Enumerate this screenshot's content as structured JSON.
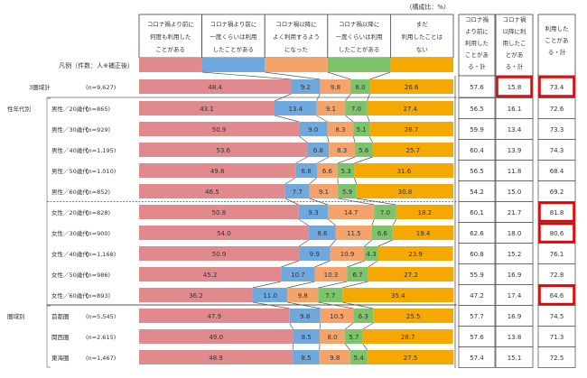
{
  "chart_data": {
    "type": "bar",
    "orientation": "horizontal-stacked-100",
    "unit_note": "（構成比：%）",
    "legend_label": "凡例（件数：人※補正後）",
    "legend_position": "top",
    "series": [
      {
        "name": "コロナ禍より前に何度も利用したことがある",
        "lines": [
          "コロナ禍より前に",
          "何度も利用した",
          "ことがある"
        ],
        "color": "#e08a8e"
      },
      {
        "name": "コロナ禍より前に一度くらいは利用したことがある",
        "lines": [
          "コロナ禍より前に",
          "一度くらいは利用",
          "したことがある"
        ],
        "color": "#6fa8dc"
      },
      {
        "name": "コロナ禍以降によく利用するようになった",
        "lines": [
          "コロナ禍以降に",
          "よく利用するよう",
          "になった"
        ],
        "color": "#f4a36a"
      },
      {
        "name": "コロナ禍以降に一度くらいは利用したことがある",
        "lines": [
          "コロナ禍以降に",
          "一度くらいは利用",
          "したことがある"
        ],
        "color": "#7dc36b"
      },
      {
        "name": "まだ利用したことはない",
        "lines": [
          "まだ",
          "利用したことは",
          "ない"
        ],
        "color": "#f5a800"
      }
    ],
    "summary_columns": [
      {
        "lines": [
          "コロナ禍",
          "より前に",
          "利用した",
          "ことがあ",
          "る・計"
        ]
      },
      {
        "lines": [
          "コロナ禍",
          "以降に利",
          "用したこ",
          "とがあ",
          "る・計"
        ]
      },
      {
        "lines": [
          "利用した",
          "ことがあ",
          "る・計"
        ]
      }
    ],
    "groups": [
      {
        "label": "性年代別",
        "from": 1,
        "to": 10
      },
      {
        "label": "圏域別",
        "from": 11,
        "to": 13
      }
    ],
    "rows": [
      {
        "label": "3圏域計",
        "n": "(n=9,627)",
        "values": [
          48.4,
          9.2,
          9.8,
          6.0,
          26.6
        ],
        "summary": [
          "57.6",
          "15.8",
          "73.4"
        ],
        "highlight": [
          false,
          true,
          true
        ]
      },
      {
        "label": "男性／20歳代",
        "n": "(n=865)",
        "values": [
          43.1,
          13.4,
          9.1,
          7.0,
          27.4
        ],
        "summary": [
          "56.5",
          "16.1",
          "72.6"
        ],
        "highlight": [
          false,
          false,
          false
        ]
      },
      {
        "label": "男性／30歳代",
        "n": "(n=929)",
        "values": [
          50.9,
          9.0,
          8.3,
          5.1,
          26.7
        ],
        "summary": [
          "59.9",
          "13.4",
          "73.3"
        ],
        "highlight": [
          false,
          false,
          false
        ]
      },
      {
        "label": "男性／40歳代",
        "n": "(n=1,195)",
        "values": [
          53.6,
          6.8,
          8.3,
          5.6,
          25.7
        ],
        "summary": [
          "60.4",
          "13.9",
          "74.3"
        ],
        "highlight": [
          false,
          false,
          false
        ]
      },
      {
        "label": "男性／50歳代",
        "n": "(n=1,010)",
        "values": [
          49.8,
          6.8,
          6.6,
          5.3,
          31.6
        ],
        "summary": [
          "56.5",
          "11.8",
          "68.4"
        ],
        "highlight": [
          false,
          false,
          false
        ]
      },
      {
        "label": "男性／60歳代",
        "n": "(n=852)",
        "values": [
          46.5,
          7.7,
          9.1,
          5.9,
          30.8
        ],
        "summary": [
          "54.2",
          "15.0",
          "69.2"
        ],
        "highlight": [
          false,
          false,
          false
        ]
      },
      {
        "label": "女性／20歳代",
        "n": "(n=828)",
        "values": [
          50.8,
          9.3,
          14.7,
          7.0,
          18.2
        ],
        "summary": [
          "60.1",
          "21.7",
          "81.8"
        ],
        "highlight": [
          false,
          false,
          true
        ]
      },
      {
        "label": "女性／30歳代",
        "n": "(n=900)",
        "values": [
          54.0,
          8.6,
          11.5,
          6.6,
          19.4
        ],
        "summary": [
          "62.6",
          "18.0",
          "80.6"
        ],
        "highlight": [
          false,
          false,
          true
        ]
      },
      {
        "label": "女性／40歳代",
        "n": "(n=1,168)",
        "values": [
          50.9,
          9.9,
          10.9,
          4.3,
          23.9
        ],
        "summary": [
          "60.8",
          "15.2",
          "76.1"
        ],
        "highlight": [
          false,
          false,
          false
        ]
      },
      {
        "label": "女性／50歳代",
        "n": "(n=986)",
        "values": [
          45.2,
          10.7,
          10.3,
          6.7,
          27.2
        ],
        "summary": [
          "55.9",
          "16.9",
          "72.8"
        ],
        "highlight": [
          false,
          false,
          false
        ]
      },
      {
        "label": "女性／60歳代",
        "n": "(n=893)",
        "values": [
          36.2,
          11.0,
          9.8,
          7.7,
          35.4
        ],
        "summary": [
          "47.2",
          "17.4",
          "64.6"
        ],
        "highlight": [
          false,
          false,
          true
        ]
      },
      {
        "label": "首都圏",
        "n": "(n=5,545)",
        "values": [
          47.9,
          9.8,
          10.5,
          6.3,
          25.5
        ],
        "summary": [
          "57.7",
          "16.9",
          "74.5"
        ],
        "highlight": [
          false,
          false,
          false
        ]
      },
      {
        "label": "関西圏",
        "n": "(n=2,615)",
        "values": [
          49.0,
          8.5,
          8.0,
          5.7,
          28.7
        ],
        "summary": [
          "57.6",
          "13.8",
          "71.3"
        ],
        "highlight": [
          false,
          false,
          false
        ]
      },
      {
        "label": "東海圏",
        "n": "(n=1,467)",
        "values": [
          48.9,
          8.5,
          9.8,
          5.4,
          27.5
        ],
        "summary": [
          "57.4",
          "15.1",
          "72.5"
        ],
        "highlight": [
          false,
          false,
          false
        ]
      }
    ],
    "xlim": [
      0,
      100
    ]
  }
}
